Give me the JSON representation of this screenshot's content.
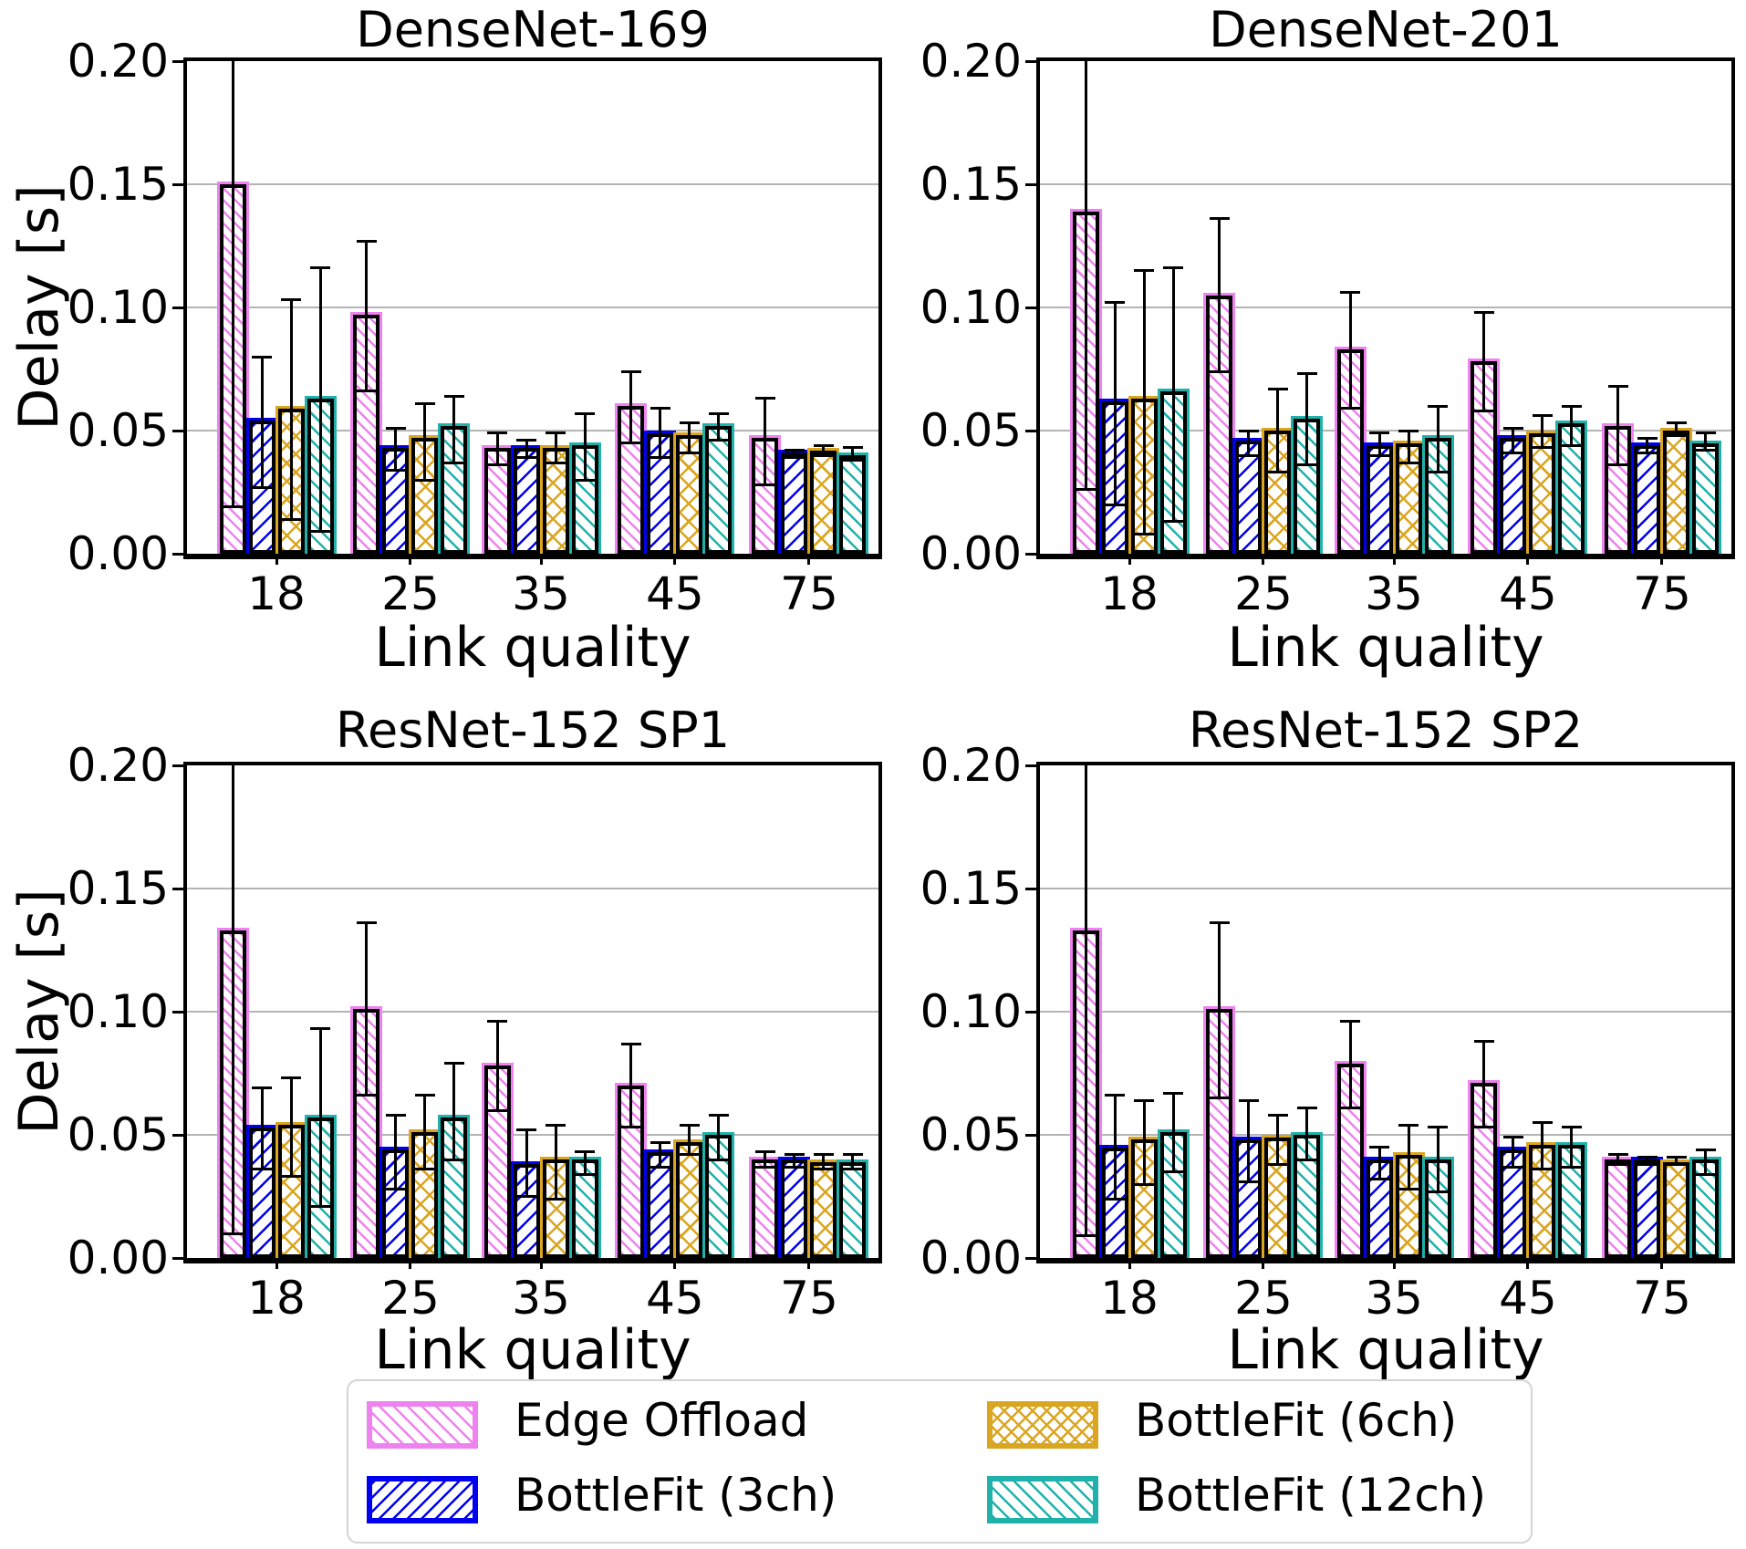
{
  "figure": {
    "ylabel": "Delay [s]",
    "xlabel": "Link quality",
    "background": "#ffffff",
    "grid_color": "#b4b4b4"
  },
  "axis": {
    "yticks": [
      "0.00",
      "0.05",
      "0.10",
      "0.15",
      "0.20"
    ],
    "ytick_values": [
      0.0,
      0.05,
      0.1,
      0.15,
      0.2
    ],
    "xticks": [
      "18",
      "25",
      "35",
      "45",
      "75"
    ],
    "ylim": [
      0.0,
      0.2
    ]
  },
  "legend": {
    "items": [
      {
        "label": "Edge Offload",
        "color": "#EE82EE",
        "hatch": "\\\\"
      },
      {
        "label": "BottleFit (3ch)",
        "color": "#0000EE",
        "hatch": "//"
      },
      {
        "label": "BottleFit (6ch)",
        "color": "#DAA520",
        "hatch": "xx"
      },
      {
        "label": "BottleFit (12ch)",
        "color": "#20B2AA",
        "hatch": "\\"
      }
    ]
  },
  "chart_data": [
    {
      "type": "bar",
      "title": "DenseNet-169",
      "xlabel": "Link quality",
      "ylabel": "Delay [s]",
      "ylim": [
        0.0,
        0.2
      ],
      "categories": [
        "18",
        "25",
        "35",
        "45",
        "75"
      ],
      "series": [
        {
          "name": "Edge Offload",
          "color": "#EE82EE",
          "hatch": "\\\\",
          "values": [
            0.15,
            0.097,
            0.043,
            0.06,
            0.047
          ],
          "err_lo": [
            0.019,
            0.066,
            0.036,
            0.045,
            0.028
          ],
          "err_hi": [
            0.21,
            0.127,
            0.049,
            0.074,
            0.063
          ]
        },
        {
          "name": "BottleFit (3ch)",
          "color": "#0000EE",
          "hatch": "//",
          "values": [
            0.054,
            0.043,
            0.043,
            0.049,
            0.041
          ],
          "err_lo": [
            0.027,
            0.034,
            0.039,
            0.039,
            0.039
          ],
          "err_hi": [
            0.08,
            0.051,
            0.046,
            0.059,
            0.042
          ]
        },
        {
          "name": "BottleFit (6ch)",
          "color": "#DAA520",
          "hatch": "xx",
          "values": [
            0.059,
            0.047,
            0.043,
            0.048,
            0.042
          ],
          "err_lo": [
            0.014,
            0.03,
            0.037,
            0.041,
            0.04
          ],
          "err_hi": [
            0.103,
            0.061,
            0.049,
            0.053,
            0.044
          ]
        },
        {
          "name": "BottleFit (12ch)",
          "color": "#20B2AA",
          "hatch": "\\",
          "values": [
            0.063,
            0.052,
            0.044,
            0.052,
            0.04
          ],
          "err_lo": [
            0.009,
            0.037,
            0.03,
            0.046,
            0.038
          ],
          "err_hi": [
            0.116,
            0.064,
            0.057,
            0.057,
            0.043
          ]
        }
      ]
    },
    {
      "type": "bar",
      "title": "DenseNet-201",
      "xlabel": "Link quality",
      "ylabel": "Delay [s]",
      "ylim": [
        0.0,
        0.2
      ],
      "categories": [
        "18",
        "25",
        "35",
        "45",
        "75"
      ],
      "series": [
        {
          "name": "Edge Offload",
          "color": "#EE82EE",
          "hatch": "\\\\",
          "values": [
            0.139,
            0.105,
            0.083,
            0.078,
            0.052
          ],
          "err_lo": [
            0.026,
            0.074,
            0.059,
            0.058,
            0.036
          ],
          "err_hi": [
            0.21,
            0.136,
            0.106,
            0.098,
            0.068
          ]
        },
        {
          "name": "BottleFit (3ch)",
          "color": "#0000EE",
          "hatch": "//",
          "values": [
            0.062,
            0.046,
            0.044,
            0.047,
            0.044
          ],
          "err_lo": [
            0.02,
            0.04,
            0.04,
            0.041,
            0.041
          ],
          "err_hi": [
            0.102,
            0.05,
            0.049,
            0.051,
            0.047
          ]
        },
        {
          "name": "BottleFit (6ch)",
          "color": "#DAA520",
          "hatch": "xx",
          "values": [
            0.063,
            0.05,
            0.045,
            0.049,
            0.05
          ],
          "err_lo": [
            0.008,
            0.033,
            0.037,
            0.043,
            0.048
          ],
          "err_hi": [
            0.115,
            0.067,
            0.05,
            0.056,
            0.053
          ]
        },
        {
          "name": "BottleFit (12ch)",
          "color": "#20B2AA",
          "hatch": "\\",
          "values": [
            0.066,
            0.055,
            0.047,
            0.053,
            0.045
          ],
          "err_lo": [
            0.013,
            0.036,
            0.033,
            0.044,
            0.042
          ],
          "err_hi": [
            0.116,
            0.073,
            0.06,
            0.06,
            0.049
          ]
        }
      ]
    },
    {
      "type": "bar",
      "title": "ResNet-152 SP1",
      "xlabel": "Link quality",
      "ylabel": "Delay [s]",
      "ylim": [
        0.0,
        0.2
      ],
      "categories": [
        "18",
        "25",
        "35",
        "45",
        "75"
      ],
      "series": [
        {
          "name": "Edge Offload",
          "color": "#EE82EE",
          "hatch": "\\\\",
          "values": [
            0.133,
            0.101,
            0.078,
            0.07,
            0.04
          ],
          "err_lo": [
            0.01,
            0.066,
            0.06,
            0.053,
            0.037
          ],
          "err_hi": [
            0.21,
            0.136,
            0.096,
            0.087,
            0.043
          ]
        },
        {
          "name": "BottleFit (3ch)",
          "color": "#0000EE",
          "hatch": "//",
          "values": [
            0.053,
            0.044,
            0.038,
            0.043,
            0.04
          ],
          "err_lo": [
            0.036,
            0.028,
            0.025,
            0.037,
            0.037
          ],
          "err_hi": [
            0.069,
            0.058,
            0.052,
            0.047,
            0.042
          ]
        },
        {
          "name": "BottleFit (6ch)",
          "color": "#DAA520",
          "hatch": "xx",
          "values": [
            0.054,
            0.051,
            0.04,
            0.047,
            0.039
          ],
          "err_lo": [
            0.033,
            0.036,
            0.024,
            0.042,
            0.036
          ],
          "err_hi": [
            0.073,
            0.066,
            0.054,
            0.054,
            0.042
          ]
        },
        {
          "name": "BottleFit (12ch)",
          "color": "#20B2AA",
          "hatch": "\\",
          "values": [
            0.057,
            0.057,
            0.04,
            0.05,
            0.039
          ],
          "err_lo": [
            0.021,
            0.04,
            0.034,
            0.04,
            0.036
          ],
          "err_hi": [
            0.093,
            0.079,
            0.043,
            0.058,
            0.042
          ]
        }
      ]
    },
    {
      "type": "bar",
      "title": "ResNet-152 SP2",
      "xlabel": "Link quality",
      "ylabel": "Delay [s]",
      "ylim": [
        0.0,
        0.2
      ],
      "categories": [
        "18",
        "25",
        "35",
        "45",
        "75"
      ],
      "series": [
        {
          "name": "Edge Offload",
          "color": "#EE82EE",
          "hatch": "\\\\",
          "values": [
            0.133,
            0.101,
            0.079,
            0.071,
            0.04
          ],
          "err_lo": [
            0.009,
            0.065,
            0.061,
            0.053,
            0.038
          ],
          "err_hi": [
            0.21,
            0.136,
            0.096,
            0.088,
            0.042
          ]
        },
        {
          "name": "BottleFit (3ch)",
          "color": "#0000EE",
          "hatch": "//",
          "values": [
            0.045,
            0.048,
            0.04,
            0.044,
            0.04
          ],
          "err_lo": [
            0.024,
            0.031,
            0.032,
            0.037,
            0.038
          ],
          "err_hi": [
            0.066,
            0.064,
            0.045,
            0.049,
            0.041
          ]
        },
        {
          "name": "BottleFit (6ch)",
          "color": "#DAA520",
          "hatch": "xx",
          "values": [
            0.048,
            0.049,
            0.042,
            0.046,
            0.039
          ],
          "err_lo": [
            0.03,
            0.038,
            0.028,
            0.036,
            0.038
          ],
          "err_hi": [
            0.064,
            0.058,
            0.054,
            0.055,
            0.041
          ]
        },
        {
          "name": "BottleFit (12ch)",
          "color": "#20B2AA",
          "hatch": "\\",
          "values": [
            0.051,
            0.05,
            0.04,
            0.046,
            0.04
          ],
          "err_lo": [
            0.035,
            0.04,
            0.027,
            0.037,
            0.034
          ],
          "err_hi": [
            0.067,
            0.061,
            0.053,
            0.053,
            0.044
          ]
        }
      ]
    }
  ]
}
